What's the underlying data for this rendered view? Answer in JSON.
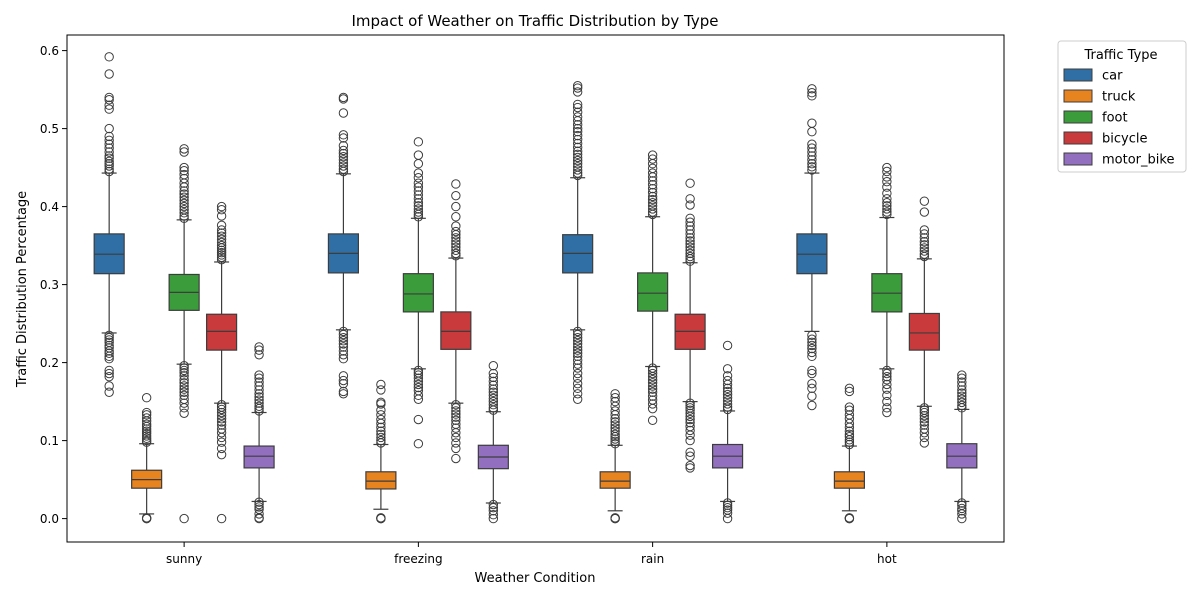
{
  "chart_data": {
    "type": "box",
    "title": "Impact of Weather on Traffic Distribution by Type",
    "xlabel": "Weather Condition",
    "ylabel": "Traffic Distribution Percentage",
    "ylim": [
      -0.03,
      0.62
    ],
    "yticks": [
      0.0,
      0.1,
      0.2,
      0.3,
      0.4,
      0.5,
      0.6
    ],
    "ytick_labels": [
      "0.0",
      "0.1",
      "0.2",
      "0.3",
      "0.4",
      "0.5",
      "0.6"
    ],
    "grid": false,
    "legend_title": "Traffic Type",
    "legend_position": "outside-top-right",
    "categories": [
      "sunny",
      "freezing",
      "rain",
      "hot"
    ],
    "series": [
      {
        "name": "car",
        "color": "#2f6fa5",
        "stats": [
          {
            "q1": 0.314,
            "median": 0.339,
            "q3": 0.365,
            "whislo": 0.238,
            "whishi": 0.443,
            "fliers_low": [
              0.235,
              0.232,
              0.229,
              0.226,
              0.222,
              0.219,
              0.215,
              0.212,
              0.208,
              0.205,
              0.19,
              0.186,
              0.182,
              0.17,
              0.162
            ],
            "fliers_high": [
              0.445,
              0.448,
              0.452,
              0.455,
              0.458,
              0.462,
              0.465,
              0.47,
              0.475,
              0.48,
              0.485,
              0.49,
              0.5,
              0.525,
              0.53,
              0.537,
              0.54,
              0.57,
              0.592
            ]
          },
          {
            "q1": 0.315,
            "median": 0.34,
            "q3": 0.365,
            "whislo": 0.242,
            "whishi": 0.442,
            "fliers_low": [
              0.24,
              0.236,
              0.232,
              0.228,
              0.224,
              0.22,
              0.215,
              0.21,
              0.205,
              0.183,
              0.177,
              0.173,
              0.163,
              0.16
            ],
            "fliers_high": [
              0.445,
              0.448,
              0.452,
              0.456,
              0.46,
              0.464,
              0.468,
              0.472,
              0.478,
              0.488,
              0.492,
              0.52,
              0.538,
              0.54
            ]
          },
          {
            "q1": 0.315,
            "median": 0.34,
            "q3": 0.364,
            "whislo": 0.242,
            "whishi": 0.437,
            "fliers_low": [
              0.24,
              0.236,
              0.232,
              0.228,
              0.224,
              0.22,
              0.216,
              0.212,
              0.208,
              0.203,
              0.198,
              0.193,
              0.186,
              0.18,
              0.173,
              0.167,
              0.16,
              0.153
            ],
            "fliers_high": [
              0.44,
              0.443,
              0.447,
              0.451,
              0.455,
              0.459,
              0.463,
              0.467,
              0.471,
              0.476,
              0.481,
              0.486,
              0.491,
              0.496,
              0.5,
              0.505,
              0.51,
              0.515,
              0.521,
              0.527,
              0.531,
              0.547,
              0.552,
              0.555
            ]
          },
          {
            "q1": 0.314,
            "median": 0.339,
            "q3": 0.365,
            "whislo": 0.24,
            "whishi": 0.443,
            "fliers_low": [
              0.235,
              0.23,
              0.226,
              0.222,
              0.218,
              0.213,
              0.208,
              0.19,
              0.186,
              0.173,
              0.167,
              0.157,
              0.145
            ],
            "fliers_high": [
              0.447,
              0.451,
              0.455,
              0.46,
              0.465,
              0.47,
              0.475,
              0.48,
              0.496,
              0.507,
              0.542,
              0.546,
              0.551
            ]
          }
        ]
      },
      {
        "name": "truck",
        "color": "#e8841f",
        "stats": [
          {
            "q1": 0.039,
            "median": 0.05,
            "q3": 0.062,
            "whislo": 0.006,
            "whishi": 0.096,
            "fliers_low": [
              0.001,
              0.0,
              0.0
            ],
            "fliers_high": [
              0.098,
              0.1,
              0.103,
              0.106,
              0.109,
              0.112,
              0.115,
              0.118,
              0.121,
              0.125,
              0.129,
              0.133,
              0.136,
              0.155
            ]
          },
          {
            "q1": 0.038,
            "median": 0.048,
            "q3": 0.06,
            "whislo": 0.012,
            "whishi": 0.095,
            "fliers_low": [
              0.001,
              0.0,
              0.0
            ],
            "fliers_high": [
              0.097,
              0.1,
              0.104,
              0.108,
              0.112,
              0.117,
              0.122,
              0.127,
              0.133,
              0.139,
              0.147,
              0.149,
              0.165,
              0.172
            ]
          },
          {
            "q1": 0.039,
            "median": 0.048,
            "q3": 0.06,
            "whislo": 0.01,
            "whishi": 0.094,
            "fliers_low": [
              0.001,
              0.0,
              0.0
            ],
            "fliers_high": [
              0.096,
              0.099,
              0.102,
              0.105,
              0.108,
              0.112,
              0.116,
              0.12,
              0.124,
              0.128,
              0.133,
              0.138,
              0.144,
              0.15,
              0.155,
              0.16
            ]
          },
          {
            "q1": 0.039,
            "median": 0.048,
            "q3": 0.06,
            "whislo": 0.01,
            "whishi": 0.093,
            "fliers_low": [
              0.001,
              0.0,
              0.0
            ],
            "fliers_high": [
              0.095,
              0.098,
              0.101,
              0.105,
              0.108,
              0.112,
              0.117,
              0.122,
              0.128,
              0.133,
              0.139,
              0.143,
              0.163,
              0.167
            ]
          }
        ]
      },
      {
        "name": "foot",
        "color": "#3a9c3a",
        "stats": [
          {
            "q1": 0.267,
            "median": 0.29,
            "q3": 0.313,
            "whislo": 0.198,
            "whishi": 0.383,
            "fliers_low": [
              0.196,
              0.193,
              0.19,
              0.187,
              0.183,
              0.178,
              0.174,
              0.17,
              0.166,
              0.162,
              0.158,
              0.153,
              0.148,
              0.142,
              0.135,
              0.0
            ],
            "fliers_high": [
              0.385,
              0.388,
              0.392,
              0.396,
              0.4,
              0.404,
              0.408,
              0.412,
              0.416,
              0.42,
              0.425,
              0.43,
              0.436,
              0.441,
              0.446,
              0.45,
              0.47,
              0.474
            ]
          },
          {
            "q1": 0.265,
            "median": 0.288,
            "q3": 0.314,
            "whislo": 0.192,
            "whishi": 0.385,
            "fliers_low": [
              0.19,
              0.187,
              0.184,
              0.18,
              0.176,
              0.172,
              0.168,
              0.164,
              0.158,
              0.153,
              0.127,
              0.096
            ],
            "fliers_high": [
              0.387,
              0.39,
              0.393,
              0.397,
              0.401,
              0.405,
              0.41,
              0.415,
              0.42,
              0.425,
              0.43,
              0.437,
              0.443,
              0.455,
              0.466,
              0.483
            ]
          },
          {
            "q1": 0.266,
            "median": 0.289,
            "q3": 0.315,
            "whislo": 0.195,
            "whishi": 0.387,
            "fliers_low": [
              0.193,
              0.19,
              0.186,
              0.182,
              0.178,
              0.174,
              0.17,
              0.166,
              0.162,
              0.157,
              0.152,
              0.147,
              0.141,
              0.126
            ],
            "fliers_high": [
              0.39,
              0.393,
              0.397,
              0.401,
              0.405,
              0.409,
              0.413,
              0.418,
              0.423,
              0.428,
              0.433,
              0.438,
              0.443,
              0.449,
              0.455,
              0.461,
              0.466
            ]
          },
          {
            "q1": 0.265,
            "median": 0.289,
            "q3": 0.314,
            "whislo": 0.192,
            "whishi": 0.386,
            "fliers_low": [
              0.19,
              0.186,
              0.182,
              0.178,
              0.172,
              0.166,
              0.158,
              0.15,
              0.142,
              0.136
            ],
            "fliers_high": [
              0.39,
              0.393,
              0.397,
              0.401,
              0.405,
              0.41,
              0.417,
              0.425,
              0.432,
              0.438,
              0.445,
              0.45
            ]
          }
        ]
      },
      {
        "name": "bicycle",
        "color": "#c83a3b",
        "stats": [
          {
            "q1": 0.216,
            "median": 0.24,
            "q3": 0.262,
            "whislo": 0.148,
            "whishi": 0.329,
            "fliers_low": [
              0.146,
              0.143,
              0.14,
              0.136,
              0.132,
              0.128,
              0.124,
              0.12,
              0.115,
              0.11,
              0.104,
              0.098,
              0.09,
              0.082,
              0.0
            ],
            "fliers_high": [
              0.332,
              0.335,
              0.338,
              0.341,
              0.344,
              0.347,
              0.35,
              0.354,
              0.358,
              0.362,
              0.366,
              0.37,
              0.376,
              0.388,
              0.396,
              0.4
            ]
          },
          {
            "q1": 0.217,
            "median": 0.24,
            "q3": 0.265,
            "whislo": 0.148,
            "whishi": 0.334,
            "fliers_low": [
              0.146,
              0.142,
              0.138,
              0.134,
              0.13,
              0.126,
              0.121,
              0.116,
              0.11,
              0.104,
              0.097,
              0.09,
              0.077
            ],
            "fliers_high": [
              0.337,
              0.34,
              0.344,
              0.348,
              0.352,
              0.356,
              0.36,
              0.364,
              0.368,
              0.375,
              0.387,
              0.4,
              0.414,
              0.429
            ]
          },
          {
            "q1": 0.217,
            "median": 0.24,
            "q3": 0.262,
            "whislo": 0.15,
            "whishi": 0.328,
            "fliers_low": [
              0.148,
              0.145,
              0.142,
              0.139,
              0.135,
              0.131,
              0.127,
              0.123,
              0.118,
              0.113,
              0.107,
              0.1,
              0.085,
              0.08,
              0.068,
              0.065
            ],
            "fliers_high": [
              0.33,
              0.333,
              0.336,
              0.34,
              0.344,
              0.348,
              0.352,
              0.356,
              0.36,
              0.365,
              0.37,
              0.375,
              0.38,
              0.385,
              0.402,
              0.41,
              0.43
            ]
          },
          {
            "q1": 0.216,
            "median": 0.238,
            "q3": 0.263,
            "whislo": 0.144,
            "whishi": 0.333,
            "fliers_low": [
              0.142,
              0.139,
              0.136,
              0.132,
              0.128,
              0.124,
              0.12,
              0.115,
              0.11,
              0.104,
              0.097
            ],
            "fliers_high": [
              0.336,
              0.339,
              0.343,
              0.347,
              0.351,
              0.355,
              0.36,
              0.365,
              0.37,
              0.393,
              0.407
            ]
          }
        ]
      },
      {
        "name": "motor_bike",
        "color": "#9270bf",
        "stats": [
          {
            "q1": 0.065,
            "median": 0.08,
            "q3": 0.093,
            "whislo": 0.022,
            "whishi": 0.136,
            "fliers_low": [
              0.021,
              0.018,
              0.015,
              0.012,
              0.006,
              0.001,
              0.0
            ],
            "fliers_high": [
              0.138,
              0.141,
              0.144,
              0.148,
              0.152,
              0.156,
              0.16,
              0.165,
              0.17,
              0.175,
              0.18,
              0.184,
              0.21,
              0.216,
              0.22
            ]
          },
          {
            "q1": 0.064,
            "median": 0.079,
            "q3": 0.094,
            "whislo": 0.02,
            "whishi": 0.137,
            "fliers_low": [
              0.018,
              0.014,
              0.01,
              0.005,
              0.0
            ],
            "fliers_high": [
              0.139,
              0.142,
              0.146,
              0.15,
              0.154,
              0.158,
              0.162,
              0.166,
              0.171,
              0.176,
              0.181,
              0.186,
              0.196
            ]
          },
          {
            "q1": 0.065,
            "median": 0.08,
            "q3": 0.095,
            "whislo": 0.022,
            "whishi": 0.138,
            "fliers_low": [
              0.02,
              0.017,
              0.014,
              0.011,
              0.007,
              0.0
            ],
            "fliers_high": [
              0.14,
              0.143,
              0.147,
              0.151,
              0.155,
              0.159,
              0.163,
              0.167,
              0.172,
              0.177,
              0.183,
              0.192,
              0.222
            ]
          },
          {
            "q1": 0.065,
            "median": 0.08,
            "q3": 0.096,
            "whislo": 0.022,
            "whishi": 0.14,
            "fliers_low": [
              0.02,
              0.017,
              0.013,
              0.01,
              0.006,
              0.0
            ],
            "fliers_high": [
              0.142,
              0.145,
              0.149,
              0.153,
              0.157,
              0.161,
              0.165,
              0.17,
              0.175,
              0.18,
              0.184
            ]
          }
        ]
      }
    ]
  }
}
